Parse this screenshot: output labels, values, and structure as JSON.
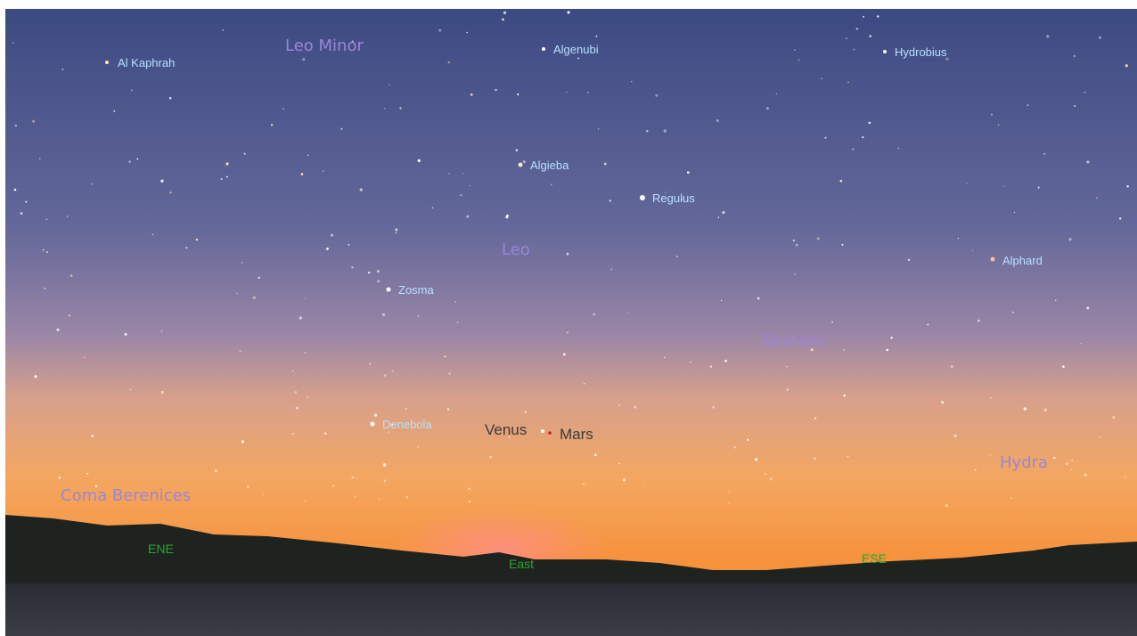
{
  "constellations": [
    "Leo Minor",
    "Leo",
    "Sextans",
    "Hydra",
    "Coma Berenices"
  ],
  "stars": [
    "Al Kaphrah",
    "Algenubi",
    "Hydrobius",
    "Algieba",
    "Regulus",
    "Alphard",
    "Zosma",
    "Denebola"
  ],
  "planets": [
    "Venus",
    "Mars"
  ],
  "directions": [
    "ENE",
    "East",
    "ESE"
  ]
}
